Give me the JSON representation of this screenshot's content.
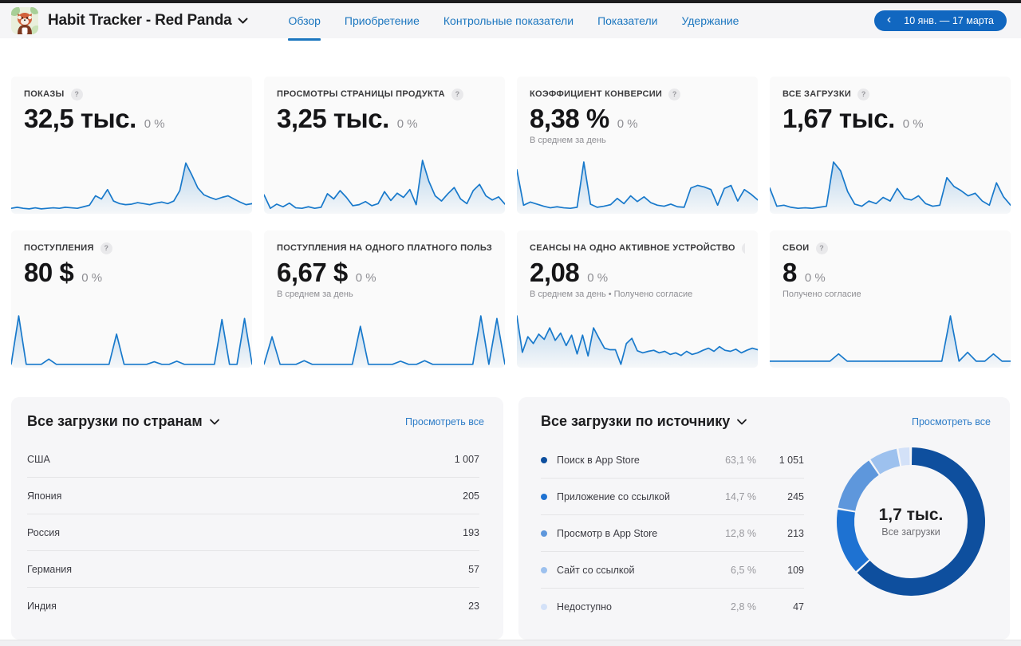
{
  "ui": {
    "help": "?"
  },
  "header": {
    "app_title": "Habit Tracker - Red Panda",
    "tabs": [
      {
        "label": "Обзор"
      },
      {
        "label": "Приобретение"
      },
      {
        "label": "Контрольные показатели"
      },
      {
        "label": "Показатели"
      },
      {
        "label": "Удержание"
      }
    ],
    "date_range": "10 янв. — 17 марта",
    "accent_color": "#1167c0"
  },
  "cards": [
    {
      "label": "ПОКАЗЫ",
      "value": "32,5 тыс.",
      "delta": "0 %",
      "subtitle": "",
      "spark": [
        6,
        8,
        6,
        5,
        7,
        5,
        6,
        7,
        6,
        8,
        7,
        6,
        9,
        12,
        30,
        24,
        42,
        20,
        15,
        13,
        14,
        17,
        15,
        13,
        16,
        18,
        15,
        20,
        40,
        93,
        70,
        45,
        32,
        27,
        23,
        27,
        30,
        24,
        18,
        13,
        15
      ]
    },
    {
      "label": "ПРОСМОТРЫ СТРАНИЦЫ ПРОДУКТА",
      "value": "3,25 тыс.",
      "delta": "0 %",
      "subtitle": "",
      "spark": [
        32,
        6,
        14,
        9,
        16,
        7,
        6,
        9,
        6,
        8,
        34,
        24,
        40,
        27,
        11,
        13,
        19,
        11,
        15,
        38,
        21,
        35,
        27,
        42,
        13,
        98,
        58,
        30,
        20,
        34,
        46,
        24,
        15,
        40,
        52,
        30,
        22,
        28,
        14
      ]
    },
    {
      "label": "КОЭФФИЦИЕНТ КОНВЕРСИИ",
      "value": "8,38 %",
      "delta": "0 %",
      "subtitle": "В среднем за день",
      "spark": [
        80,
        12,
        18,
        14,
        10,
        7,
        9,
        7,
        6,
        8,
        95,
        14,
        8,
        10,
        13,
        25,
        15,
        30,
        19,
        28,
        17,
        12,
        10,
        14,
        9,
        8,
        45,
        50,
        47,
        42,
        12,
        44,
        50,
        20,
        42,
        33,
        22
      ]
    },
    {
      "label": "ВСЕ ЗАГРУЗКИ",
      "value": "1,67 тыс.",
      "delta": "0 %",
      "subtitle": "",
      "spark": [
        45,
        10,
        12,
        8,
        6,
        7,
        6,
        8,
        10,
        95,
        78,
        38,
        14,
        10,
        20,
        15,
        27,
        20,
        44,
        25,
        22,
        30,
        15,
        10,
        12,
        65,
        48,
        40,
        30,
        35,
        20,
        12,
        55,
        28,
        12
      ]
    },
    {
      "label": "ПОСТУПЛЕНИЯ",
      "value": "80 $",
      "delta": "0 %",
      "subtitle": "",
      "spark": [
        2,
        95,
        2,
        2,
        2,
        12,
        2,
        2,
        2,
        2,
        2,
        2,
        2,
        2,
        60,
        2,
        2,
        2,
        2,
        7,
        2,
        2,
        8,
        2,
        2,
        2,
        2,
        2,
        88,
        2,
        2,
        90,
        2
      ]
    },
    {
      "label": "ПОСТУПЛЕНИЯ НА ОДНОГО ПЛАТНОГО ПОЛЬЗ",
      "value": "6,67 $",
      "delta": "0 %",
      "subtitle": "В среднем за день",
      "spark": [
        2,
        55,
        2,
        2,
        2,
        9,
        2,
        2,
        2,
        2,
        2,
        2,
        75,
        2,
        2,
        2,
        2,
        8,
        2,
        2,
        9,
        2,
        2,
        2,
        2,
        2,
        2,
        95,
        2,
        90,
        2
      ]
    },
    {
      "label": "СЕАНСЫ НА ОДНО АКТИВНОЕ УСТРОЙСТВО",
      "value": "2,08",
      "delta": "0 %",
      "subtitle": "В среднем за день • Получено согласие",
      "spark": [
        95,
        25,
        55,
        42,
        60,
        50,
        72,
        48,
        62,
        38,
        58,
        22,
        58,
        18,
        72,
        52,
        33,
        30,
        30,
        2,
        42,
        52,
        28,
        24,
        27,
        29,
        24,
        27,
        21,
        24,
        19,
        27,
        21,
        24,
        29,
        33,
        27,
        36,
        29,
        27,
        31,
        24,
        29,
        33,
        30
      ]
    },
    {
      "label": "СБОИ",
      "value": "8",
      "delta": "0 %",
      "subtitle": "Получено согласие",
      "spark": [
        8,
        8,
        8,
        8,
        8,
        8,
        8,
        8,
        22,
        8,
        8,
        8,
        8,
        8,
        8,
        8,
        8,
        8,
        8,
        8,
        8,
        95,
        8,
        25,
        8,
        8,
        22,
        8,
        8
      ]
    }
  ],
  "countries_panel": {
    "title": "Все загрузки по странам",
    "link": "Просмотреть все",
    "rows": [
      {
        "name": "США",
        "value": "1 007"
      },
      {
        "name": "Япония",
        "value": "205"
      },
      {
        "name": "Россия",
        "value": "193"
      },
      {
        "name": "Германия",
        "value": "57"
      },
      {
        "name": "Индия",
        "value": "23"
      }
    ]
  },
  "sources_panel": {
    "title": "Все загрузки по источнику",
    "link": "Просмотреть все",
    "rows": [
      {
        "name": "Поиск в App Store",
        "percent": "63,1 %",
        "value": "1 051",
        "color": "#0e4f9e"
      },
      {
        "name": "Приложение со ссылкой",
        "percent": "14,7 %",
        "value": "245",
        "color": "#1e72d2"
      },
      {
        "name": "Просмотр в App Store",
        "percent": "12,8 %",
        "value": "213",
        "color": "#5e97dc"
      },
      {
        "name": "Сайт со ссылкой",
        "percent": "6,5 %",
        "value": "109",
        "color": "#9dc1ee"
      },
      {
        "name": "Недоступно",
        "percent": "2,8 %",
        "value": "47",
        "color": "#d3e1f8"
      }
    ],
    "donut": {
      "type": "pie",
      "values": [
        63.1,
        14.7,
        12.8,
        6.5,
        2.8
      ],
      "center_value": "1,7 тыс.",
      "center_label": "Все загрузки"
    }
  },
  "spark_color": "#1879cb"
}
